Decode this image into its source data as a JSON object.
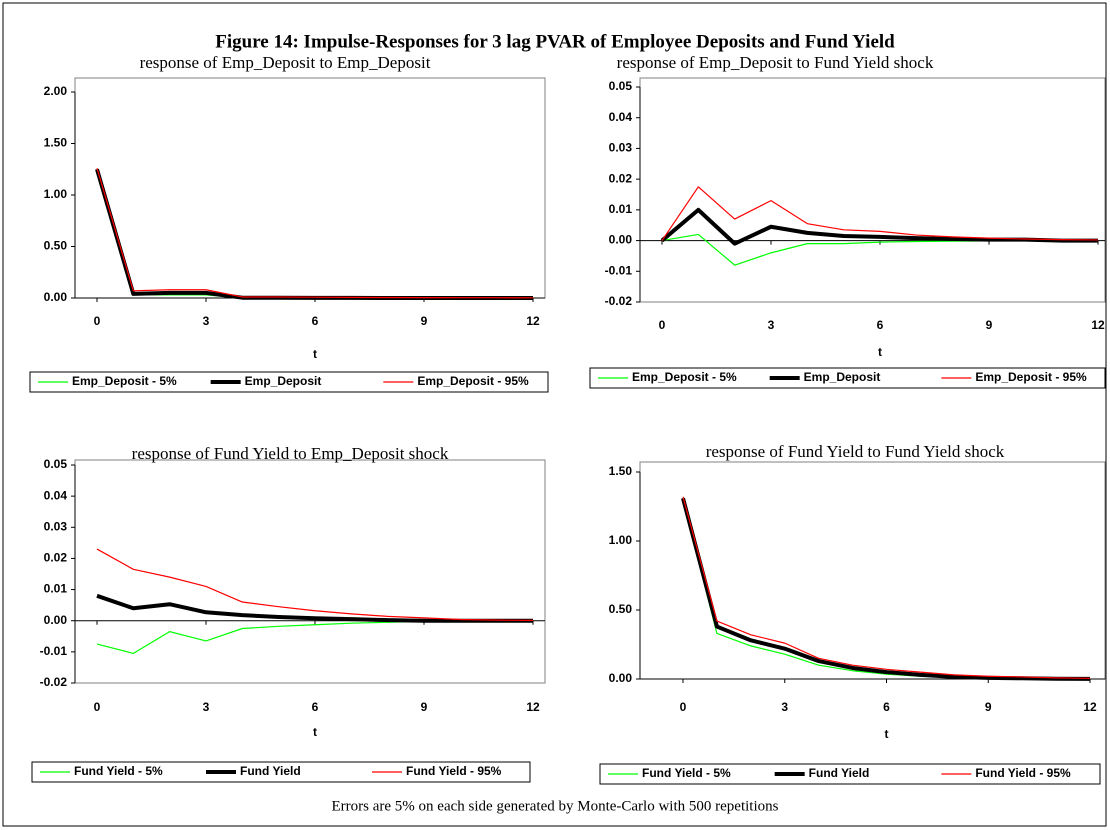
{
  "title": "Figure 14: Impulse-Responses for 3 lag PVAR of Employee Deposits and Fund Yield",
  "note": "Errors are 5% on each side generated by Monte-Carlo with 500 repetitions",
  "chart_data": [
    {
      "type": "line",
      "title": "response of Emp_Deposit to Emp_Deposit",
      "xlabel": "t",
      "legend": "bottom",
      "x": [
        0,
        1,
        2,
        3,
        4,
        5,
        6,
        7,
        8,
        9,
        10,
        11,
        12
      ],
      "xlim": [
        0,
        12
      ],
      "xticks": [
        0,
        3,
        6,
        9,
        12
      ],
      "ylim": [
        0,
        2
      ],
      "yticks": [
        {
          "value": 0,
          "label": "0.00"
        },
        {
          "value": 0.5,
          "label": "0.50"
        },
        {
          "value": 1,
          "label": "1.00"
        },
        {
          "value": 1.5,
          "label": "1.50"
        },
        {
          "value": 2,
          "label": "2.00"
        }
      ],
      "series": [
        {
          "name": "Emp_Deposit - 5%",
          "color": "#00ff00",
          "values": [
            1.24,
            0.03,
            0.03,
            0.03,
            0,
            0,
            0,
            0,
            0,
            0,
            0,
            0,
            0
          ]
        },
        {
          "name": "Emp_Deposit",
          "color": "#000000",
          "values": [
            1.25,
            0.04,
            0.05,
            0.05,
            0.003,
            0.002,
            0.001,
            0.001,
            0,
            0,
            0,
            0,
            0
          ]
        },
        {
          "name": "Emp_Deposit - 95%",
          "color": "#ff0000",
          "values": [
            1.26,
            0.07,
            0.08,
            0.08,
            0.01,
            0.01,
            0.008,
            0.006,
            0.005,
            0.004,
            0.003,
            0.003,
            0.002
          ]
        }
      ]
    },
    {
      "type": "line",
      "title": "response of Emp_Deposit to Fund Yield shock",
      "xlabel": "t",
      "legend": "bottom",
      "x": [
        0,
        1,
        2,
        3,
        4,
        5,
        6,
        7,
        8,
        9,
        10,
        11,
        12
      ],
      "xlim": [
        0,
        12
      ],
      "xticks": [
        0,
        3,
        6,
        9,
        12
      ],
      "ylim": [
        -0.02,
        0.05
      ],
      "yticks": [
        {
          "value": -0.02,
          "label": "-0.02"
        },
        {
          "value": -0.01,
          "label": "-0.01"
        },
        {
          "value": 0,
          "label": "0.00"
        },
        {
          "value": 0.01,
          "label": "0.01"
        },
        {
          "value": 0.02,
          "label": "0.02"
        },
        {
          "value": 0.03,
          "label": "0.03"
        },
        {
          "value": 0.04,
          "label": "0.04"
        },
        {
          "value": 0.05,
          "label": "0.05"
        }
      ],
      "series": [
        {
          "name": "Emp_Deposit - 5%",
          "color": "#00ff00",
          "values": [
            0,
            0.002,
            -0.008,
            -0.004,
            -0.001,
            -0.001,
            -0.0005,
            -0.0003,
            -0.0002,
            -0.0001,
            0,
            0,
            0
          ]
        },
        {
          "name": "Emp_Deposit",
          "color": "#000000",
          "values": [
            0,
            0.01,
            -0.001,
            0.0045,
            0.0025,
            0.0015,
            0.0012,
            0.0008,
            0.0005,
            0.0003,
            0.0003,
            0,
            0
          ]
        },
        {
          "name": "Emp_Deposit - 95%",
          "color": "#ff0000",
          "values": [
            0,
            0.0175,
            0.007,
            0.013,
            0.0055,
            0.0035,
            0.003,
            0.0018,
            0.0012,
            0.0008,
            0.0005,
            0.0003,
            0.0002
          ]
        }
      ]
    },
    {
      "type": "line",
      "title": "response of Fund Yield to Emp_Deposit shock",
      "xlabel": "t",
      "legend": "bottom",
      "x": [
        0,
        1,
        2,
        3,
        4,
        5,
        6,
        7,
        8,
        9,
        10,
        11,
        12
      ],
      "xlim": [
        0,
        12
      ],
      "xticks": [
        0,
        3,
        6,
        9,
        12
      ],
      "ylim": [
        -0.02,
        0.05
      ],
      "yticks": [
        {
          "value": -0.02,
          "label": "-0.02"
        },
        {
          "value": -0.01,
          "label": "-0.01"
        },
        {
          "value": 0,
          "label": "0.00"
        },
        {
          "value": 0.01,
          "label": "0.01"
        },
        {
          "value": 0.02,
          "label": "0.02"
        },
        {
          "value": 0.03,
          "label": "0.03"
        },
        {
          "value": 0.04,
          "label": "0.04"
        },
        {
          "value": 0.05,
          "label": "0.05"
        }
      ],
      "series": [
        {
          "name": "Fund Yield - 5%",
          "color": "#00ff00",
          "values": [
            -0.0075,
            -0.0105,
            -0.0035,
            -0.0065,
            -0.0025,
            -0.0018,
            -0.0013,
            -0.0008,
            -0.0005,
            -0.0002,
            -0.0001,
            0,
            0
          ]
        },
        {
          "name": "Fund Yield",
          "color": "#000000",
          "values": [
            0.008,
            0.004,
            0.0053,
            0.0027,
            0.0018,
            0.0012,
            0.0008,
            0.0005,
            0.0002,
            0,
            0,
            0,
            0
          ]
        },
        {
          "name": "Fund Yield - 95%",
          "color": "#ff0000",
          "values": [
            0.023,
            0.0165,
            0.014,
            0.011,
            0.006,
            0.0045,
            0.0032,
            0.0022,
            0.0014,
            0.0009,
            0.0004,
            0.0002,
            0.0001
          ]
        }
      ]
    },
    {
      "type": "line",
      "title": "response of Fund Yield to Fund Yield shock",
      "xlabel": "t",
      "legend": "bottom",
      "x": [
        0,
        1,
        2,
        3,
        4,
        5,
        6,
        7,
        8,
        9,
        10,
        11,
        12
      ],
      "xlim": [
        0,
        12
      ],
      "xticks": [
        0,
        3,
        6,
        9,
        12
      ],
      "ylim": [
        0,
        1.5
      ],
      "yticks": [
        {
          "value": 0,
          "label": "0.00"
        },
        {
          "value": 0.5,
          "label": "0.50"
        },
        {
          "value": 1,
          "label": "1.00"
        },
        {
          "value": 1.5,
          "label": "1.50"
        }
      ],
      "series": [
        {
          "name": "Fund Yield - 5%",
          "color": "#00ff00",
          "values": [
            1.3,
            0.33,
            0.24,
            0.18,
            0.1,
            0.06,
            0.035,
            0.02,
            0.01,
            0.005,
            0.003,
            0.001,
            0
          ]
        },
        {
          "name": "Fund Yield",
          "color": "#000000",
          "values": [
            1.31,
            0.38,
            0.28,
            0.22,
            0.13,
            0.08,
            0.05,
            0.03,
            0.015,
            0.008,
            0.005,
            0.002,
            0.001
          ]
        },
        {
          "name": "Fund Yield - 95%",
          "color": "#ff0000",
          "values": [
            1.32,
            0.42,
            0.32,
            0.26,
            0.15,
            0.1,
            0.07,
            0.05,
            0.03,
            0.02,
            0.015,
            0.008,
            0.005
          ]
        }
      ]
    }
  ]
}
